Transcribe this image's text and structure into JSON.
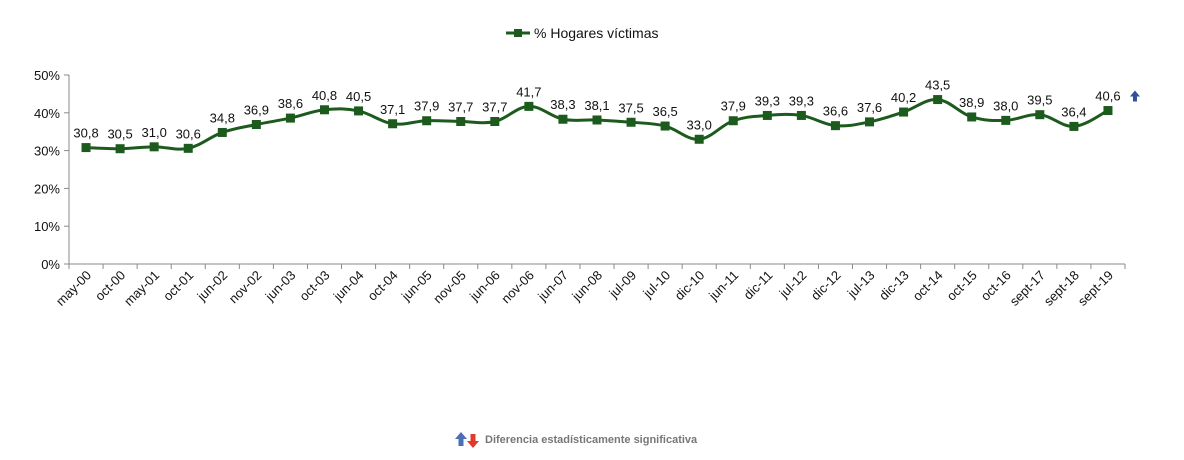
{
  "chart_data": {
    "type": "line",
    "title": "",
    "xlabel": "",
    "ylabel": "",
    "ylim": [
      0,
      50
    ],
    "y_ticks": [
      0,
      10,
      20,
      30,
      40,
      50
    ],
    "y_tick_suffix": "%",
    "grid": false,
    "legend_position": "top-center",
    "categories": [
      "may-00",
      "oct-00",
      "may-01",
      "oct-01",
      "jun-02",
      "nov-02",
      "jun-03",
      "oct-03",
      "jun-04",
      "oct-04",
      "jun-05",
      "nov-05",
      "jun-06",
      "nov-06",
      "jun-07",
      "jun-08",
      "jul-09",
      "jul-10",
      "dic-10",
      "jun-11",
      "dic-11",
      "jul-12",
      "dic-12",
      "jul-13",
      "dic-13",
      "oct-14",
      "oct-15",
      "oct-16",
      "sept-17",
      "sept-18",
      "sept-19"
    ],
    "series": [
      {
        "name": "% Hogares víctimas",
        "color": "#1d5a1d",
        "values": [
          30.8,
          30.5,
          31.0,
          30.6,
          34.8,
          36.9,
          38.6,
          40.8,
          40.5,
          37.1,
          37.9,
          37.7,
          37.7,
          41.7,
          38.3,
          38.1,
          37.5,
          36.5,
          33.0,
          37.9,
          39.3,
          39.3,
          36.6,
          37.6,
          40.2,
          43.5,
          38.9,
          38.0,
          39.5,
          36.4,
          40.6
        ],
        "labels": [
          "30,8",
          "30,5",
          "31,0",
          "30,6",
          "34,8",
          "36,9",
          "38,6",
          "40,8",
          "40,5",
          "37,1",
          "37,9",
          "37,7",
          "37,7",
          "41,7",
          "38,3",
          "38,1",
          "37,5",
          "36,5",
          "33,0",
          "37,9",
          "39,3",
          "39,3",
          "36,6",
          "37,6",
          "40,2",
          "43,5",
          "38,9",
          "38,0",
          "39,5",
          "36,4",
          "40,6"
        ]
      }
    ],
    "significance_marker": {
      "index": 30,
      "direction": "up",
      "color": "#2f4f9a"
    },
    "note": "Diferencia estadísticamente significativa",
    "note_colors": {
      "up": "#4a6fb5",
      "down": "#e03a2a"
    }
  }
}
